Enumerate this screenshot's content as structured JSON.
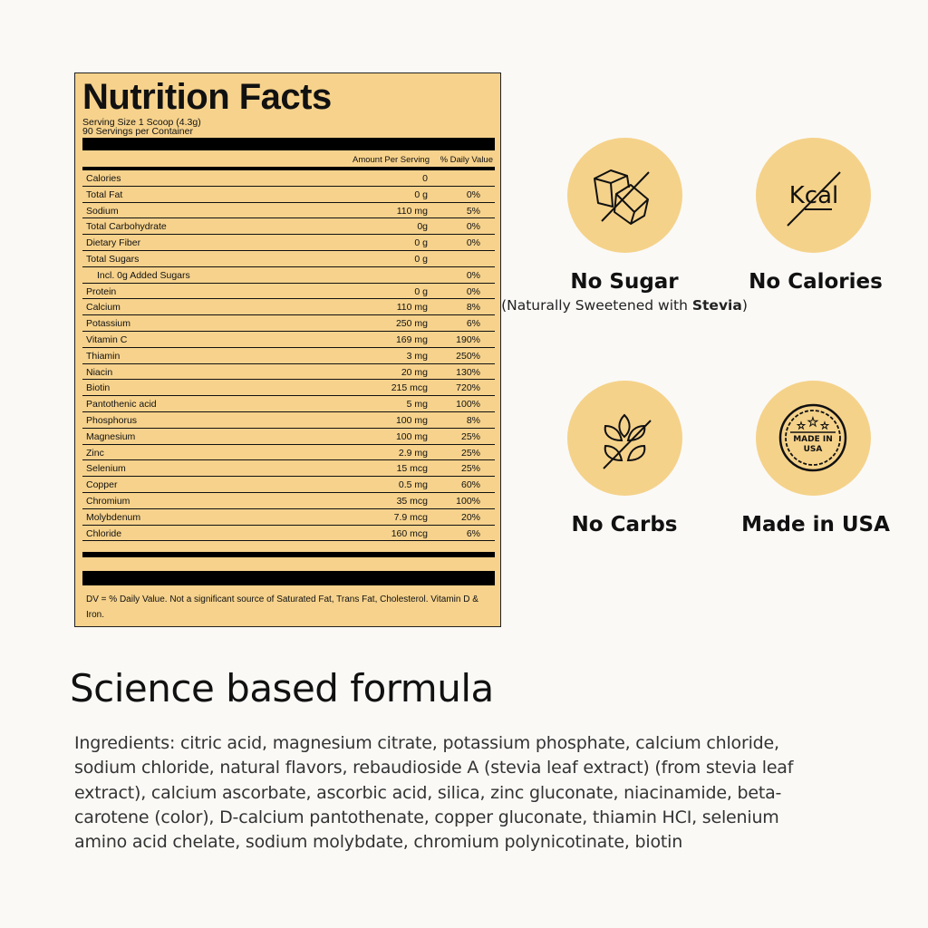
{
  "label": {
    "title": "Nutrition Facts",
    "serving_size": "Serving Size 1 Scoop (4.3g)",
    "servings": "90 Servings per Container",
    "col_amount": "Amount Per Serving",
    "col_dv": "% Daily Value",
    "rows": [
      {
        "name": "Calories",
        "amount": "0",
        "dv": ""
      },
      {
        "name": "Total Fat",
        "amount": "0 g",
        "dv": "0%"
      },
      {
        "name": "Sodium",
        "amount": "110 mg",
        "dv": "5%"
      },
      {
        "name": "Total Carbohydrate",
        "amount": "0g",
        "dv": "0%"
      },
      {
        "name": "Dietary Fiber",
        "amount": "0 g",
        "dv": "0%"
      },
      {
        "name": "Total Sugars",
        "amount": "0 g",
        "dv": ""
      },
      {
        "name": "Incl. 0g Added Sugars",
        "amount": "",
        "dv": "0%",
        "indent": true
      },
      {
        "name": "Protein",
        "amount": "0 g",
        "dv": "0%"
      },
      {
        "name": "Calcium",
        "amount": "110 mg",
        "dv": "8%"
      },
      {
        "name": "Potassium",
        "amount": "250 mg",
        "dv": "6%"
      },
      {
        "name": "Vitamin C",
        "amount": "169 mg",
        "dv": "190%"
      },
      {
        "name": "Thiamin",
        "amount": "3 mg",
        "dv": "250%"
      },
      {
        "name": "Niacin",
        "amount": "20 mg",
        "dv": "130%"
      },
      {
        "name": "Biotin",
        "amount": "215 mcg",
        "dv": "720%"
      },
      {
        "name": "Pantothenic acid",
        "amount": "5 mg",
        "dv": "100%"
      },
      {
        "name": "Phosphorus",
        "amount": "100 mg",
        "dv": "8%"
      },
      {
        "name": "Magnesium",
        "amount": "100 mg",
        "dv": "25%"
      },
      {
        "name": "Zinc",
        "amount": "2.9 mg",
        "dv": "25%"
      },
      {
        "name": "Selenium",
        "amount": "15 mcg",
        "dv": "25%"
      },
      {
        "name": "Copper",
        "amount": "0.5 mg",
        "dv": "60%"
      },
      {
        "name": "Chromium",
        "amount": "35 mcg",
        "dv": "100%"
      },
      {
        "name": "Molybdenum",
        "amount": "7.9 mcg",
        "dv": "20%"
      },
      {
        "name": "Chloride",
        "amount": "160 mcg",
        "dv": "6%"
      }
    ],
    "footnote": "DV = % Daily Value. Not a significant source of Saturated Fat, Trans Fat, Cholesterol. Vitamin D & Iron."
  },
  "badges": [
    {
      "icon": "sugar-cubes-crossed-icon",
      "label": "No Sugar",
      "sub_prefix": "(Naturally Sweetened with ",
      "sub_bold": "Stevia",
      "sub_suffix": ")"
    },
    {
      "icon": "kcal-crossed-icon",
      "label": "No Calories",
      "icon_text": "Kcal"
    },
    {
      "icon": "grain-crossed-icon",
      "label": "No Carbs"
    },
    {
      "icon": "made-in-usa-seal-icon",
      "label": "Made in USA",
      "icon_text": "MADE IN USA"
    }
  ],
  "accent_color": "#f5d28a",
  "section_title": "Science based formula",
  "ingredients": "Ingredients: citric acid, magnesium citrate, potassium phosphate, calcium chloride, sodium chloride, natural flavors, rebaudioside A (stevia leaf extract) (from stevia leaf extract), calcium ascorbate, ascorbic acid, silica, zinc gluconate, niacinamide, beta-carotene (color), D-calcium pantothenate, copper gluconate, thiamin HCI, selenium amino acid chelate, sodium molybdate, chromium polynicotinate, biotin"
}
